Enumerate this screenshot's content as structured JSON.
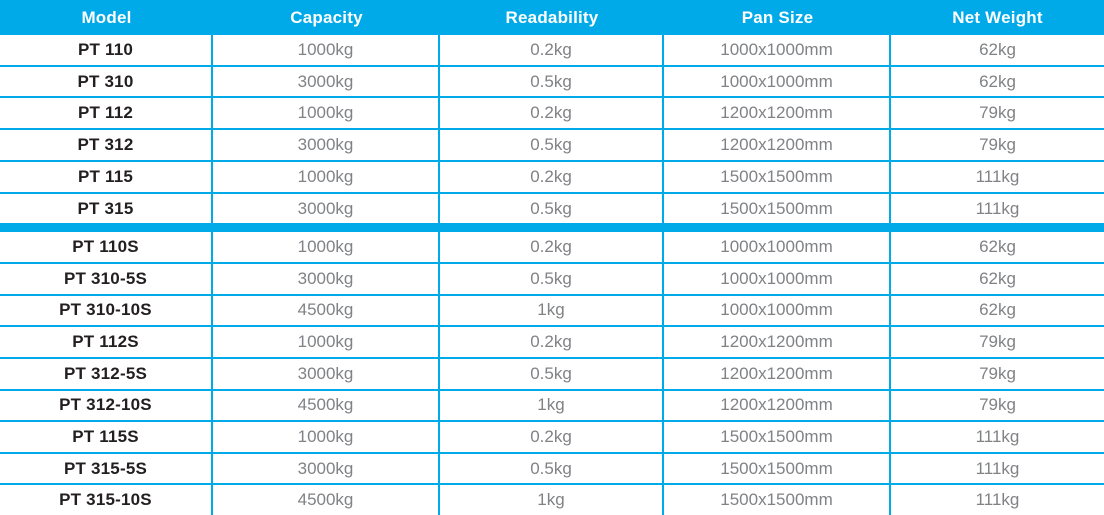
{
  "colors": {
    "accent": "#00aae9",
    "header_text": "#ffffff",
    "body_text": "#808285",
    "model_text": "#231f20"
  },
  "table": {
    "columns": [
      "Model",
      "Capacity",
      "Readability",
      "Pan Size",
      "Net Weight"
    ],
    "sections": [
      {
        "rows": [
          {
            "model": "PT 110",
            "capacity": "1000kg",
            "readability": "0.2kg",
            "pan_size": "1000x1000mm",
            "net_weight": "62kg"
          },
          {
            "model": "PT 310",
            "capacity": "3000kg",
            "readability": "0.5kg",
            "pan_size": "1000x1000mm",
            "net_weight": "62kg"
          },
          {
            "model": "PT 112",
            "capacity": "1000kg",
            "readability": "0.2kg",
            "pan_size": "1200x1200mm",
            "net_weight": "79kg"
          },
          {
            "model": "PT 312",
            "capacity": "3000kg",
            "readability": "0.5kg",
            "pan_size": "1200x1200mm",
            "net_weight": "79kg"
          },
          {
            "model": "PT 115",
            "capacity": "1000kg",
            "readability": "0.2kg",
            "pan_size": "1500x1500mm",
            "net_weight": "111kg"
          },
          {
            "model": "PT 315",
            "capacity": "3000kg",
            "readability": "0.5kg",
            "pan_size": "1500x1500mm",
            "net_weight": "111kg"
          }
        ]
      },
      {
        "rows": [
          {
            "model": "PT 110S",
            "capacity": "1000kg",
            "readability": "0.2kg",
            "pan_size": "1000x1000mm",
            "net_weight": "62kg"
          },
          {
            "model": "PT 310-5S",
            "capacity": "3000kg",
            "readability": "0.5kg",
            "pan_size": "1000x1000mm",
            "net_weight": "62kg"
          },
          {
            "model": "PT 310-10S",
            "capacity": "4500kg",
            "readability": "1kg",
            "pan_size": "1000x1000mm",
            "net_weight": "62kg"
          },
          {
            "model": "PT 112S",
            "capacity": "1000kg",
            "readability": "0.2kg",
            "pan_size": "1200x1200mm",
            "net_weight": "79kg"
          },
          {
            "model": "PT 312-5S",
            "capacity": "3000kg",
            "readability": "0.5kg",
            "pan_size": "1200x1200mm",
            "net_weight": "79kg"
          },
          {
            "model": "PT 312-10S",
            "capacity": "4500kg",
            "readability": "1kg",
            "pan_size": "1200x1200mm",
            "net_weight": "79kg"
          },
          {
            "model": "PT 115S",
            "capacity": "1000kg",
            "readability": "0.2kg",
            "pan_size": "1500x1500mm",
            "net_weight": "111kg"
          },
          {
            "model": "PT 315-5S",
            "capacity": "3000kg",
            "readability": "0.5kg",
            "pan_size": "1500x1500mm",
            "net_weight": "111kg"
          },
          {
            "model": "PT 315-10S",
            "capacity": "4500kg",
            "readability": "1kg",
            "pan_size": "1500x1500mm",
            "net_weight": "111kg"
          }
        ]
      }
    ]
  }
}
